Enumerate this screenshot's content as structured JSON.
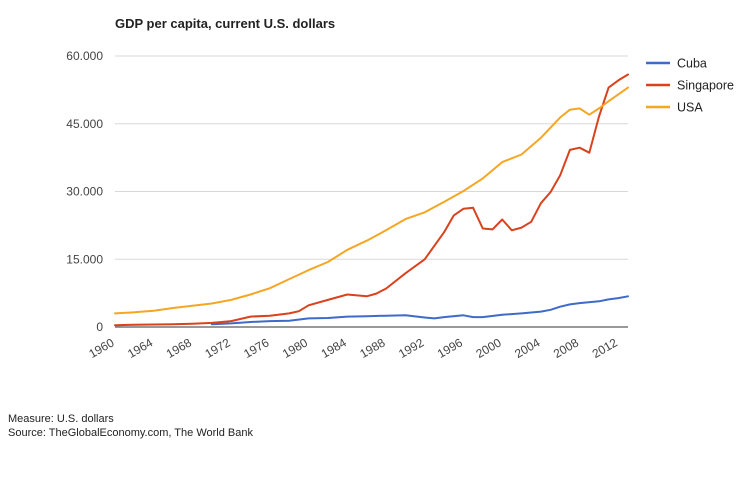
{
  "chart_data": {
    "type": "line",
    "title": "GDP per capita, current U.S. dollars",
    "xlabel": "",
    "ylabel": "",
    "xlim": [
      1960,
      2013
    ],
    "ylim": [
      0,
      60000
    ],
    "y_ticks": [
      0,
      15000,
      30000,
      45000,
      60000
    ],
    "y_tick_labels": [
      "0",
      "15.000",
      "30.000",
      "45.000",
      "60.000"
    ],
    "x_ticks": [
      1960,
      1964,
      1968,
      1972,
      1976,
      1980,
      1984,
      1988,
      1992,
      1996,
      2000,
      2004,
      2008,
      2012
    ],
    "x_tick_labels": [
      "1960",
      "1964",
      "1968",
      "1972",
      "1976",
      "1980",
      "1984",
      "1988",
      "1992",
      "1996",
      "2000",
      "2004",
      "2008",
      "2012"
    ],
    "grid": "horizontal",
    "legend_position": "right",
    "series": [
      {
        "name": "Cuba",
        "color": "#3e6bc9",
        "x": [
          1970,
          1972,
          1974,
          1976,
          1978,
          1980,
          1982,
          1984,
          1986,
          1988,
          1990,
          1992,
          1993,
          1994,
          1996,
          1997,
          1998,
          2000,
          2002,
          2004,
          2005,
          2006,
          2007,
          2008,
          2010,
          2011,
          2012,
          2013
        ],
        "values": [
          600,
          800,
          1100,
          1300,
          1400,
          1900,
          2000,
          2300,
          2400,
          2500,
          2600,
          2100,
          1900,
          2200,
          2600,
          2200,
          2200,
          2700,
          3000,
          3400,
          3800,
          4500,
          5000,
          5300,
          5700,
          6100,
          6400,
          6800
        ]
      },
      {
        "name": "Singapore",
        "color": "#d9421c",
        "x": [
          1960,
          1962,
          1964,
          1966,
          1968,
          1970,
          1972,
          1973,
          1974,
          1976,
          1978,
          1979,
          1980,
          1982,
          1984,
          1986,
          1987,
          1988,
          1990,
          1992,
          1994,
          1995,
          1996,
          1997,
          1998,
          1999,
          2000,
          2001,
          2002,
          2003,
          2004,
          2005,
          2006,
          2007,
          2008,
          2009,
          2010,
          2011,
          2012,
          2013
        ],
        "values": [
          400,
          500,
          550,
          600,
          700,
          900,
          1300,
          1800,
          2300,
          2500,
          3000,
          3500,
          4800,
          6000,
          7200,
          6800,
          7400,
          8500,
          11900,
          15000,
          21000,
          24700,
          26200,
          26400,
          21800,
          21600,
          23800,
          21400,
          22000,
          23300,
          27400,
          29900,
          33600,
          39200,
          39700,
          38600,
          46600,
          53000,
          54600,
          55900
        ]
      },
      {
        "name": "USA",
        "color": "#f5a623",
        "x": [
          1960,
          1962,
          1964,
          1966,
          1968,
          1970,
          1972,
          1974,
          1976,
          1978,
          1980,
          1982,
          1984,
          1986,
          1988,
          1990,
          1992,
          1994,
          1996,
          1998,
          2000,
          2002,
          2004,
          2006,
          2007,
          2008,
          2009,
          2010,
          2011,
          2012,
          2013
        ],
        "values": [
          3000,
          3250,
          3600,
          4200,
          4700,
          5200,
          6000,
          7200,
          8600,
          10600,
          12600,
          14400,
          17100,
          19100,
          21400,
          23900,
          25400,
          27700,
          30100,
          32900,
          36500,
          38200,
          41900,
          46400,
          48100,
          48400,
          47000,
          48400,
          50000,
          51500,
          53000
        ]
      }
    ],
    "legend": [
      "Cuba",
      "Singapore",
      "USA"
    ]
  },
  "footer": {
    "measure": "Measure: U.S. dollars",
    "source": "Source: TheGlobalEconomy.com, The World Bank"
  }
}
